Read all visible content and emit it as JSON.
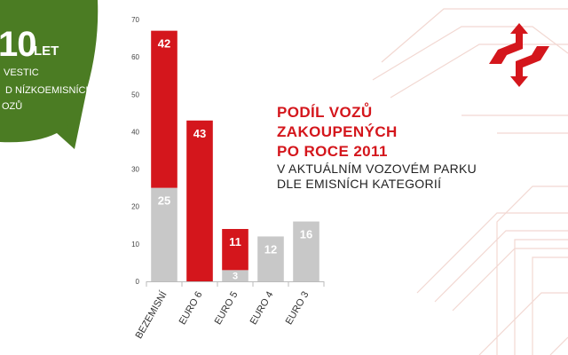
{
  "colors": {
    "red": "#d4161c",
    "gray": "#c8c8c8",
    "green": "#4b7c23",
    "line_pattern": "#f2d8d2"
  },
  "badge": {
    "number": "10",
    "unit": "LET",
    "line2": "VESTIC",
    "line3": "D NÍZKOEMISNÍCH",
    "line4": "OZŮ"
  },
  "logo": {
    "icon": "arrows-exchange-logo"
  },
  "title": {
    "line1": "PODÍL VOZŮ",
    "line2": "ZAKOUPENÝCH",
    "line3": "PO ROCE 2011",
    "line4": "V AKTUÁLNÍM VOZOVÉM PARKU",
    "line5": "DLE EMISNÍCH KATEGORIÍ"
  },
  "chart_data": {
    "type": "bar",
    "stacked": true,
    "categories": [
      "BEZEMISNÍ",
      "EURO 6",
      "EURO 5",
      "EURO 4",
      "EURO 3"
    ],
    "series": [
      {
        "color": "#c8c8c8",
        "values": [
          25,
          0,
          3,
          12,
          16
        ],
        "labels": [
          "25",
          "",
          "3",
          "12",
          "16"
        ]
      },
      {
        "color": "#d4161c",
        "values": [
          42,
          43,
          11,
          0,
          0
        ],
        "labels": [
          "42",
          "43",
          "11",
          "",
          ""
        ]
      }
    ],
    "ylim": [
      0,
      70
    ],
    "yticks": [
      "0",
      "10",
      "20",
      "30",
      "40",
      "50",
      "60",
      "70"
    ],
    "grid": false,
    "legend": "none"
  }
}
